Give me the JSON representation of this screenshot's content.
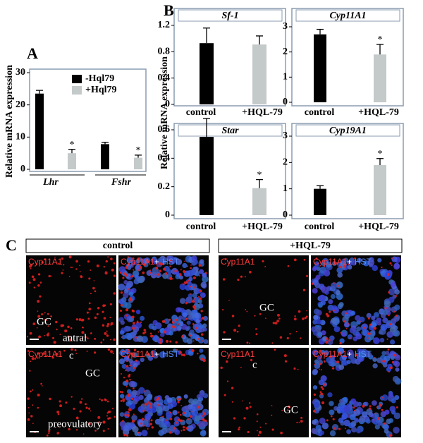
{
  "panel_letters": [
    "A",
    "B",
    "C"
  ],
  "chart_data": [
    {
      "type": "bar",
      "ylabel": "Relative mRNA expression",
      "categories": [
        "Lhr",
        "Fshr"
      ],
      "series": [
        {
          "name": "-Hql79",
          "color": "#000000",
          "values": [
            23.5,
            7.8
          ],
          "errors": [
            1.0,
            0.6
          ],
          "annotations": [
            null,
            null
          ]
        },
        {
          "name": "+Hql79",
          "color": "#c4c9c9",
          "values": [
            5,
            3.6
          ],
          "errors": [
            1.2,
            0.8
          ],
          "annotations": [
            "*",
            "*"
          ]
        }
      ],
      "ylim": [
        0,
        30
      ],
      "yticks": [
        0,
        10,
        20,
        30
      ],
      "legend": "top-right"
    },
    {
      "type": "bar",
      "title": "Sf-1",
      "ylabel": "Relative mRNA expression",
      "categories": [
        "control",
        "+HQL-79"
      ],
      "values": [
        0.93,
        0.91
      ],
      "errors": [
        0.23,
        0.13
      ],
      "annotations": [
        null,
        null
      ],
      "colors": [
        "#000000",
        "#c4c9c9"
      ],
      "ylim": [
        0,
        1.2
      ],
      "yticks": [
        0,
        0.4,
        0.8,
        1.2
      ]
    },
    {
      "type": "bar",
      "title": "Cyp11A1",
      "categories": [
        "control",
        "+HQL-79"
      ],
      "values": [
        2.7,
        1.9
      ],
      "errors": [
        0.2,
        0.4
      ],
      "annotations": [
        null,
        "*"
      ],
      "colors": [
        "#000000",
        "#c4c9c9"
      ],
      "ylim": [
        0,
        3
      ],
      "yticks": [
        0,
        1,
        2,
        3
      ]
    },
    {
      "type": "bar",
      "title": "Star",
      "categories": [
        "control",
        "+HQL-79"
      ],
      "values": [
        0.55,
        0.19
      ],
      "errors": [
        0.13,
        0.06
      ],
      "annotations": [
        null,
        "*"
      ],
      "colors": [
        "#000000",
        "#c4c9c9"
      ],
      "ylim": [
        0,
        0.6
      ],
      "yticks": [
        0,
        0.2,
        0.4,
        0.6
      ]
    },
    {
      "type": "bar",
      "title": "Cyp19A1",
      "categories": [
        "control",
        "+HQL-79"
      ],
      "values": [
        1.0,
        1.9
      ],
      "errors": [
        0.12,
        0.25
      ],
      "annotations": [
        null,
        "*"
      ],
      "colors": [
        "#000000",
        "#c4c9c9"
      ],
      "ylim": [
        0,
        3
      ],
      "yticks": [
        0,
        1,
        2,
        3
      ]
    }
  ],
  "panel_c": {
    "conditions": [
      "control",
      "+HQL-79"
    ],
    "single_stain": "Cyp11A1",
    "merge_stain": [
      "Cyp11A1",
      "+",
      "HST"
    ],
    "labels": [
      [
        "GC",
        "antral"
      ],
      [
        "GC"
      ],
      [
        "c",
        "GC",
        "preovulatory"
      ],
      [
        "c",
        "GC"
      ]
    ]
  }
}
